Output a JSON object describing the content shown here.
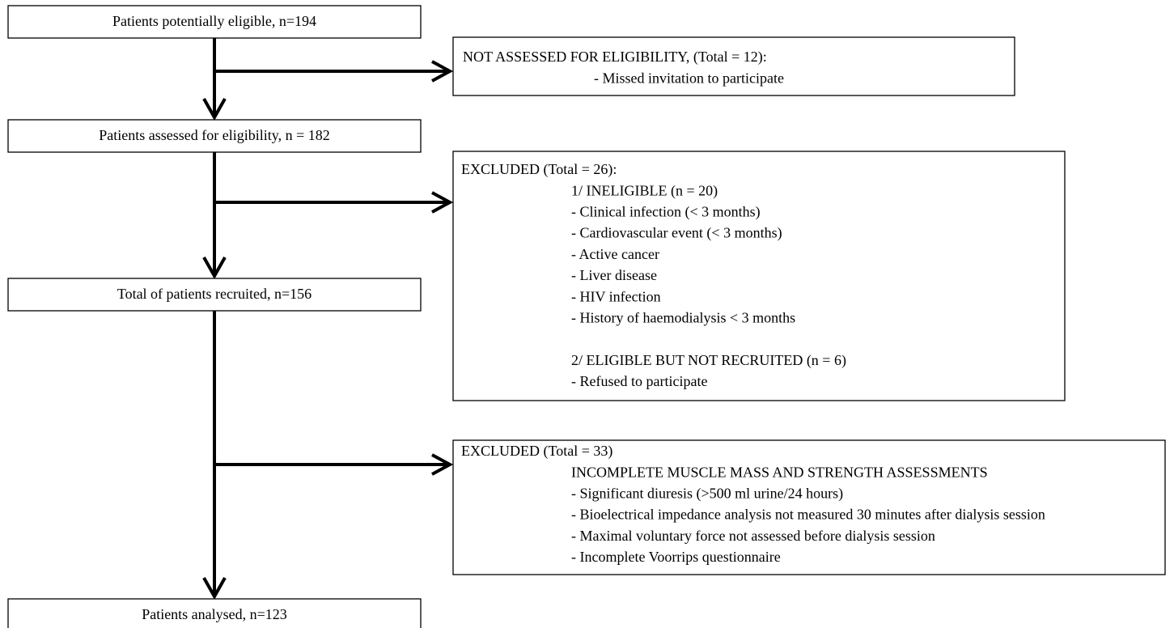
{
  "nodes": [
    {
      "label": "Patients potentially eligible, n=194"
    },
    {
      "label": "Patients assessed for eligibility, n = 182"
    },
    {
      "label": "Total of patients recruited, n=156"
    },
    {
      "label": "Patients analysed, n=123"
    }
  ],
  "exclusions": [
    {
      "title": "NOT ASSESSED FOR ELIGIBILITY, (Total = 12):",
      "groups": [
        {
          "items": [
            "- Missed invitation to participate"
          ]
        }
      ]
    },
    {
      "title": "EXCLUDED (Total = 26):",
      "groups": [
        {
          "heading": "1/ INELIGIBLE (n = 20)",
          "items": [
            "- Clinical infection (< 3 months)",
            "- Cardiovascular event (< 3 months)",
            "- Active cancer",
            "- Liver disease",
            "- HIV infection",
            "- History of haemodialysis < 3 months"
          ]
        },
        {
          "heading": "2/ ELIGIBLE BUT NOT RECRUITED (n = 6)",
          "items": [
            "- Refused to participate"
          ]
        }
      ]
    },
    {
      "title": "EXCLUDED (Total = 33)",
      "groups": [
        {
          "heading": "INCOMPLETE MUSCLE MASS AND STRENGTH ASSESSMENTS",
          "items": [
            "- Significant diuresis (>500 ml urine/24 hours)",
            "- Bioelectrical impedance analysis not measured 30 minutes after dialysis session",
            "- Maximal voluntary force not assessed before dialysis session",
            "- Incomplete Voorrips questionnaire"
          ]
        }
      ]
    }
  ]
}
